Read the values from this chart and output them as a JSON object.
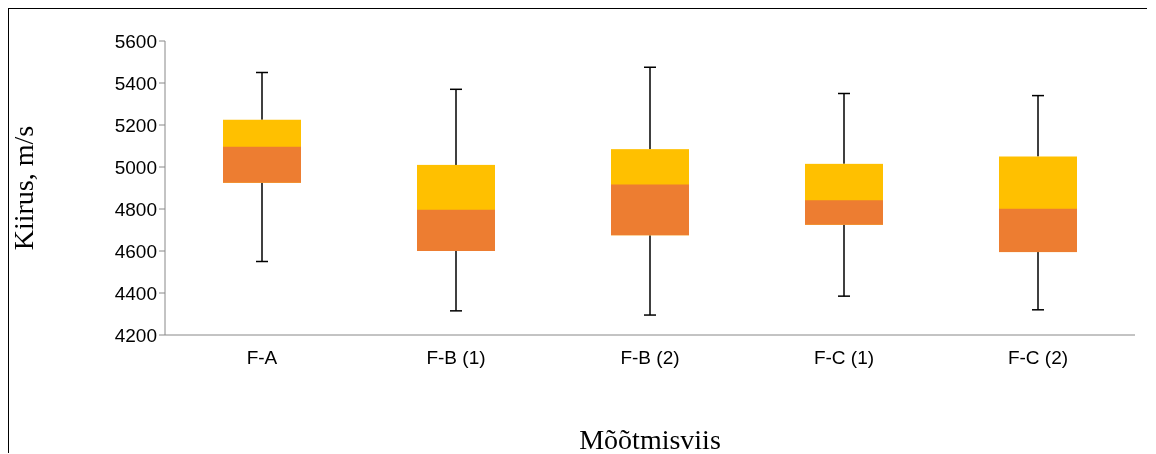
{
  "chart_data": {
    "type": "box",
    "xlabel": "Mõõtmisviis",
    "ylabel": "Kiirus, m/s",
    "categories": [
      "F-A",
      "F-B (1)",
      "F-B (2)",
      "F-C (1)",
      "F-C (2)"
    ],
    "series": [
      {
        "color": "#ed7d31",
        "boxes": [
          {
            "low": 4550,
            "q1": 4925,
            "median": 5100,
            "q3": 5225,
            "high": 5450
          },
          {
            "low": 4315,
            "q1": 4600,
            "median": 4800,
            "q3": 5010,
            "high": 5370
          },
          {
            "low": 4295,
            "q1": 4675,
            "median": 4920,
            "q3": 5085,
            "high": 5475
          },
          {
            "low": 4385,
            "q1": 4725,
            "median": 4845,
            "q3": 5015,
            "high": 5350
          },
          {
            "low": 4320,
            "q1": 4595,
            "median": 4805,
            "q3": 5050,
            "high": 5340
          }
        ]
      },
      {
        "color": "#ffc000",
        "boxes": [
          {
            "low": 4550,
            "q1": 4925,
            "median": 5100,
            "q3": 5225,
            "high": 5450
          },
          {
            "low": 4315,
            "q1": 4600,
            "median": 4800,
            "q3": 5010,
            "high": 5370
          },
          {
            "low": 4295,
            "q1": 4675,
            "median": 4920,
            "q3": 5085,
            "high": 5475
          },
          {
            "low": 4385,
            "q1": 4725,
            "median": 4845,
            "q3": 5015,
            "high": 5350
          },
          {
            "low": 4320,
            "q1": 4595,
            "median": 4805,
            "q3": 5050,
            "high": 5340
          }
        ]
      }
    ],
    "ylim": [
      4200,
      5600
    ],
    "yticks": [
      4200,
      4400,
      4600,
      4800,
      5000,
      5200,
      5400,
      5600
    ],
    "grid": false,
    "legend": false
  }
}
